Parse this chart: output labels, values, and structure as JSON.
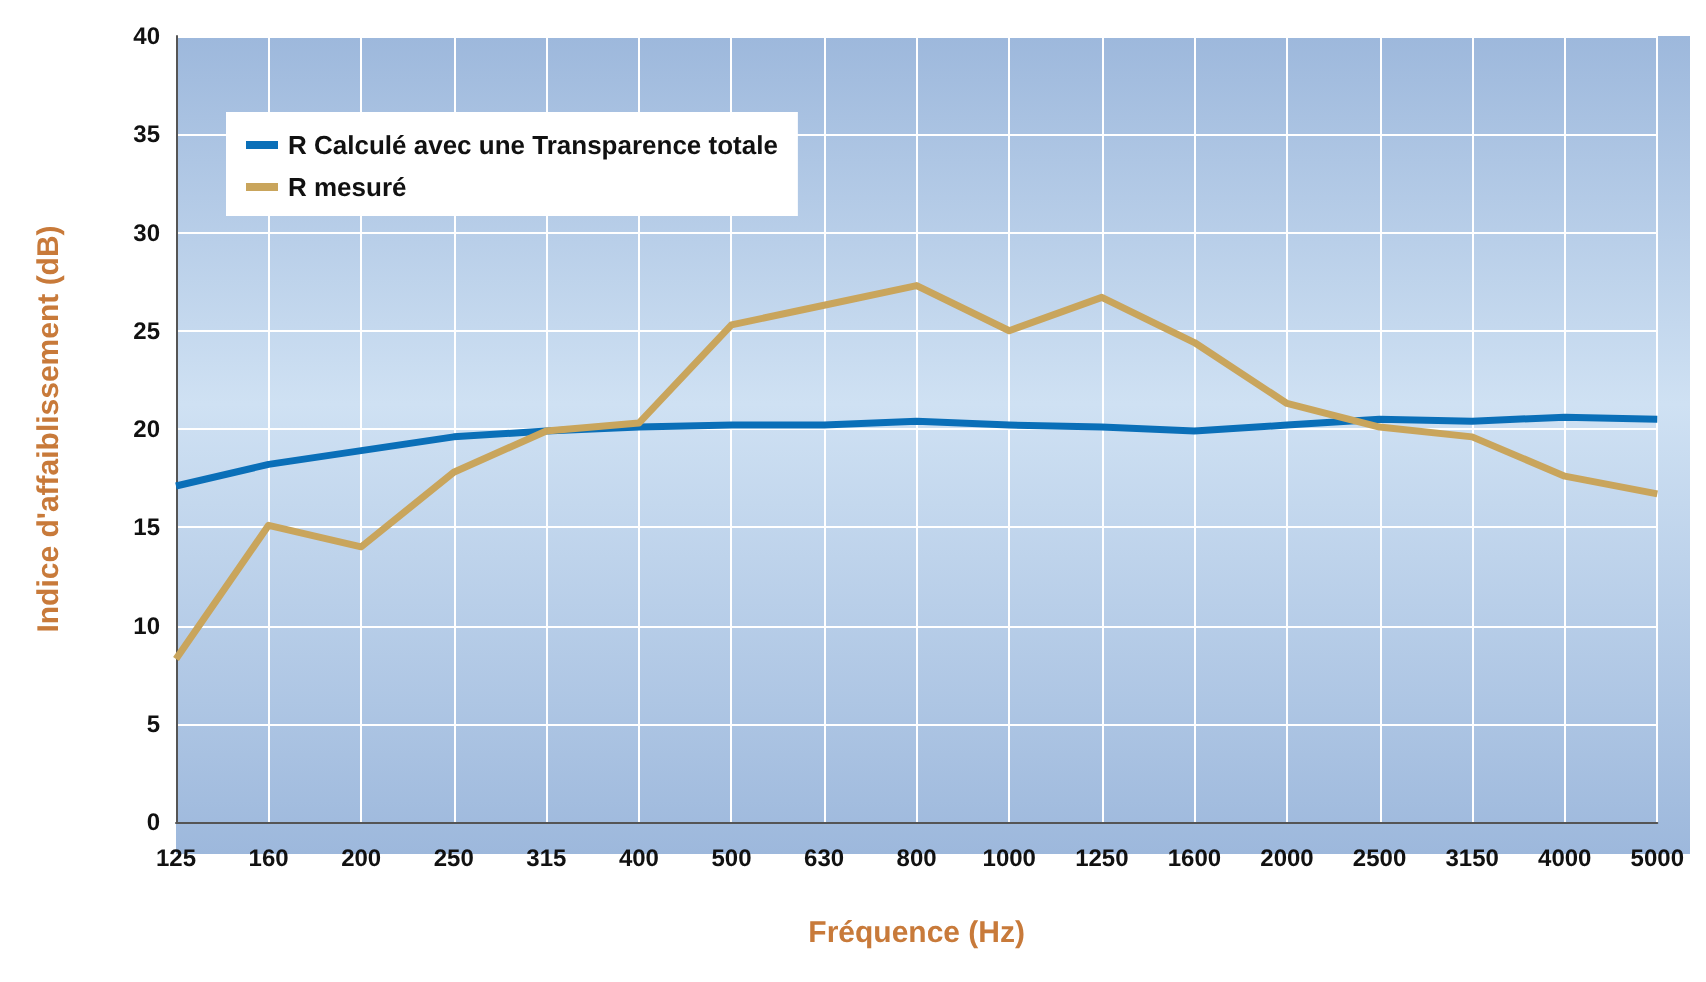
{
  "chart_data": {
    "type": "line",
    "xlabel": "Fréquence (Hz)",
    "ylabel": "Indice d'affaiblissement (dB)",
    "categories": [
      "125",
      "160",
      "200",
      "250",
      "315",
      "400",
      "500",
      "630",
      "800",
      "1000",
      "1250",
      "1600",
      "2000",
      "2500",
      "3150",
      "4000",
      "5000"
    ],
    "series": [
      {
        "name": "R Calculé avec une Transparence totale",
        "color": "#0a6fb8",
        "values": [
          17.1,
          18.2,
          18.9,
          19.6,
          19.9,
          20.1,
          20.2,
          20.2,
          20.4,
          20.2,
          20.1,
          19.9,
          20.2,
          20.5,
          20.4,
          20.6,
          20.5
        ]
      },
      {
        "name": "R mesuré",
        "color": "#c9a55c",
        "values": [
          8.3,
          15.1,
          14.0,
          17.8,
          19.9,
          20.3,
          25.3,
          26.3,
          27.3,
          25.0,
          26.7,
          24.4,
          21.3,
          20.1,
          19.6,
          17.6,
          16.7
        ]
      }
    ],
    "ylim": [
      0,
      40
    ],
    "yticks": [
      0,
      5,
      10,
      15,
      20,
      25,
      30,
      35,
      40
    ],
    "grid": true,
    "legend": "top left",
    "marker": "none",
    "line_style": "solid"
  }
}
